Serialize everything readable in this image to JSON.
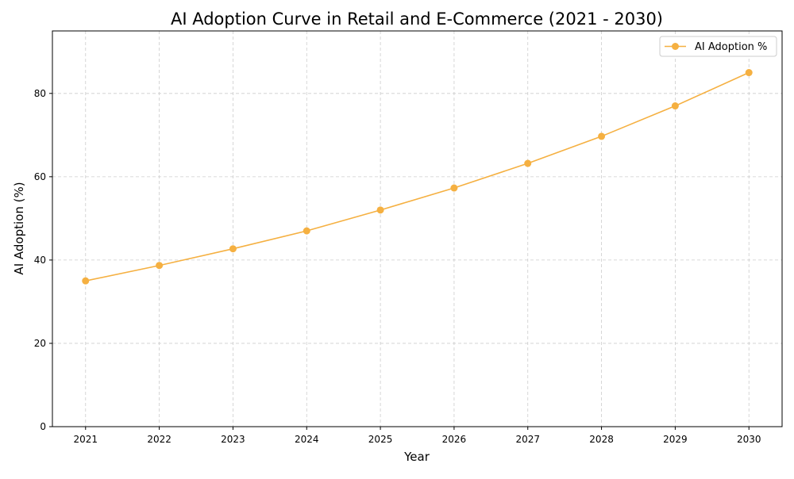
{
  "chart_data": {
    "type": "line",
    "title": "AI Adoption Curve in Retail and E-Commerce (2021 - 2030)",
    "xlabel": "Year",
    "ylabel": "AI Adoption (%)",
    "x": [
      2021,
      2022,
      2023,
      2024,
      2025,
      2026,
      2027,
      2028,
      2029,
      2030
    ],
    "series": [
      {
        "name": "AI Adoption %",
        "values": [
          35.0,
          38.7,
          42.7,
          47.0,
          52.0,
          57.3,
          63.2,
          69.7,
          77.0,
          85.0
        ],
        "color": "#f5b041",
        "marker": "circle"
      }
    ],
    "xlim": [
      2020.55,
      2030.45
    ],
    "ylim": [
      0,
      95
    ],
    "xticks": [
      2021,
      2022,
      2023,
      2024,
      2025,
      2026,
      2027,
      2028,
      2029,
      2030
    ],
    "yticks": [
      0,
      20,
      40,
      60,
      80
    ],
    "grid": true,
    "grid_style": "dashed",
    "legend": "top-right"
  }
}
